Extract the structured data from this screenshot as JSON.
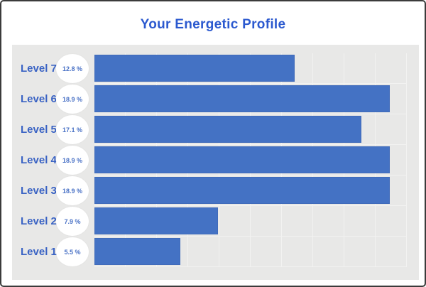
{
  "title": "Your Energetic Profile",
  "chart_data": {
    "type": "bar",
    "orientation": "horizontal",
    "title": "Your Energetic Profile",
    "categories": [
      "Level 7",
      "Level 6",
      "Level 5",
      "Level 4",
      "Level 3",
      "Level 2",
      "Level 1"
    ],
    "values": [
      12.8,
      18.9,
      17.1,
      18.9,
      18.9,
      7.9,
      5.5
    ],
    "value_labels": [
      "12.8 %",
      "18.9 %",
      "17.1 %",
      "18.9 %",
      "18.9 %",
      "7.9 %",
      "5.5 %"
    ],
    "xlim": [
      0,
      20
    ],
    "gridline_interval_percent": 2,
    "grid": true,
    "legend": "none",
    "colors": {
      "bar": "#4472c4",
      "panel_background": "#e8e8e7",
      "gridline": "#f2f2f1",
      "category_label": "#3a63c4",
      "value_label": "#4a72c6",
      "title": "#2b59cf",
      "badge_background": "#ffffff",
      "frame_border": "#3b3b3b"
    }
  }
}
